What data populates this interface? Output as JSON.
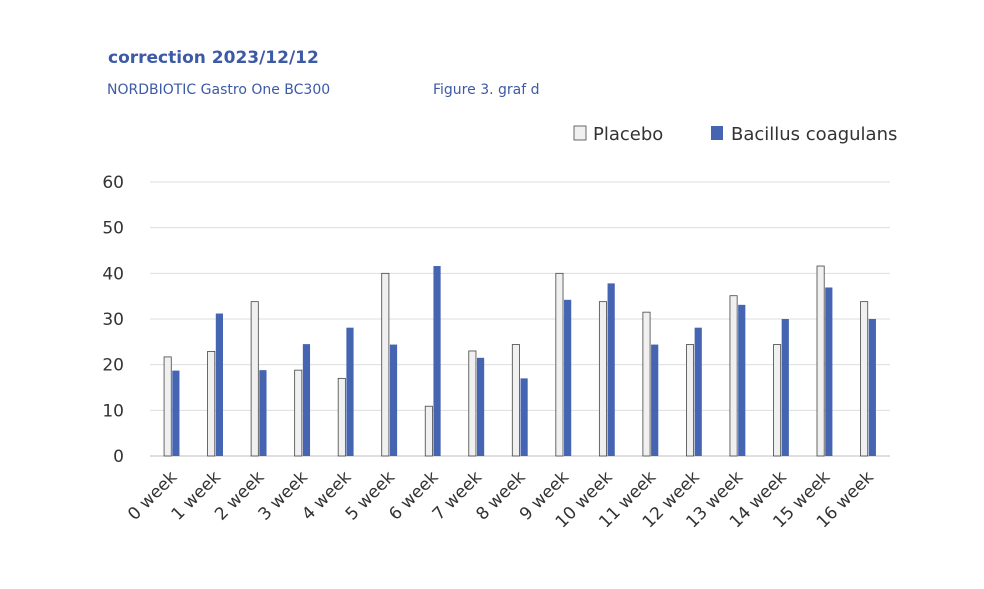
{
  "header": {
    "title": "correction 2023/12/12",
    "product": "NORDBIOTIC Gastro One BC300",
    "figure": "Figure 3. graf d"
  },
  "chart_data": {
    "type": "bar",
    "title": "",
    "xlabel": "",
    "ylabel": "",
    "ylim": [
      0,
      60
    ],
    "yticks": [
      0,
      10,
      20,
      30,
      40,
      50,
      60
    ],
    "grid": true,
    "legend_position": "top-right",
    "categories": [
      "0 week",
      "1 week",
      "2 week",
      "3 week",
      "4 week",
      "5 week",
      "6 week",
      "7 week",
      "8 week",
      "9 week",
      "10 week",
      "11 week",
      "12 week",
      "13 week",
      "14 week",
      "15 week",
      "16 week"
    ],
    "series": [
      {
        "name": "Placebo",
        "color": "#f0f0f0",
        "stroke": "#444444",
        "values": [
          21.7,
          22.9,
          33.8,
          18.8,
          17.0,
          40.0,
          10.9,
          23.0,
          24.4,
          40.0,
          33.8,
          31.5,
          24.4,
          35.1,
          24.4,
          41.6,
          33.8
        ]
      },
      {
        "name": "Bacillus coagulans",
        "color": "#4565b3",
        "stroke": "#4565b3",
        "values": [
          18.7,
          31.2,
          18.8,
          24.5,
          28.1,
          24.4,
          41.6,
          21.5,
          17.0,
          34.2,
          37.8,
          24.4,
          28.1,
          33.1,
          30.0,
          36.9,
          30.0
        ]
      }
    ]
  }
}
